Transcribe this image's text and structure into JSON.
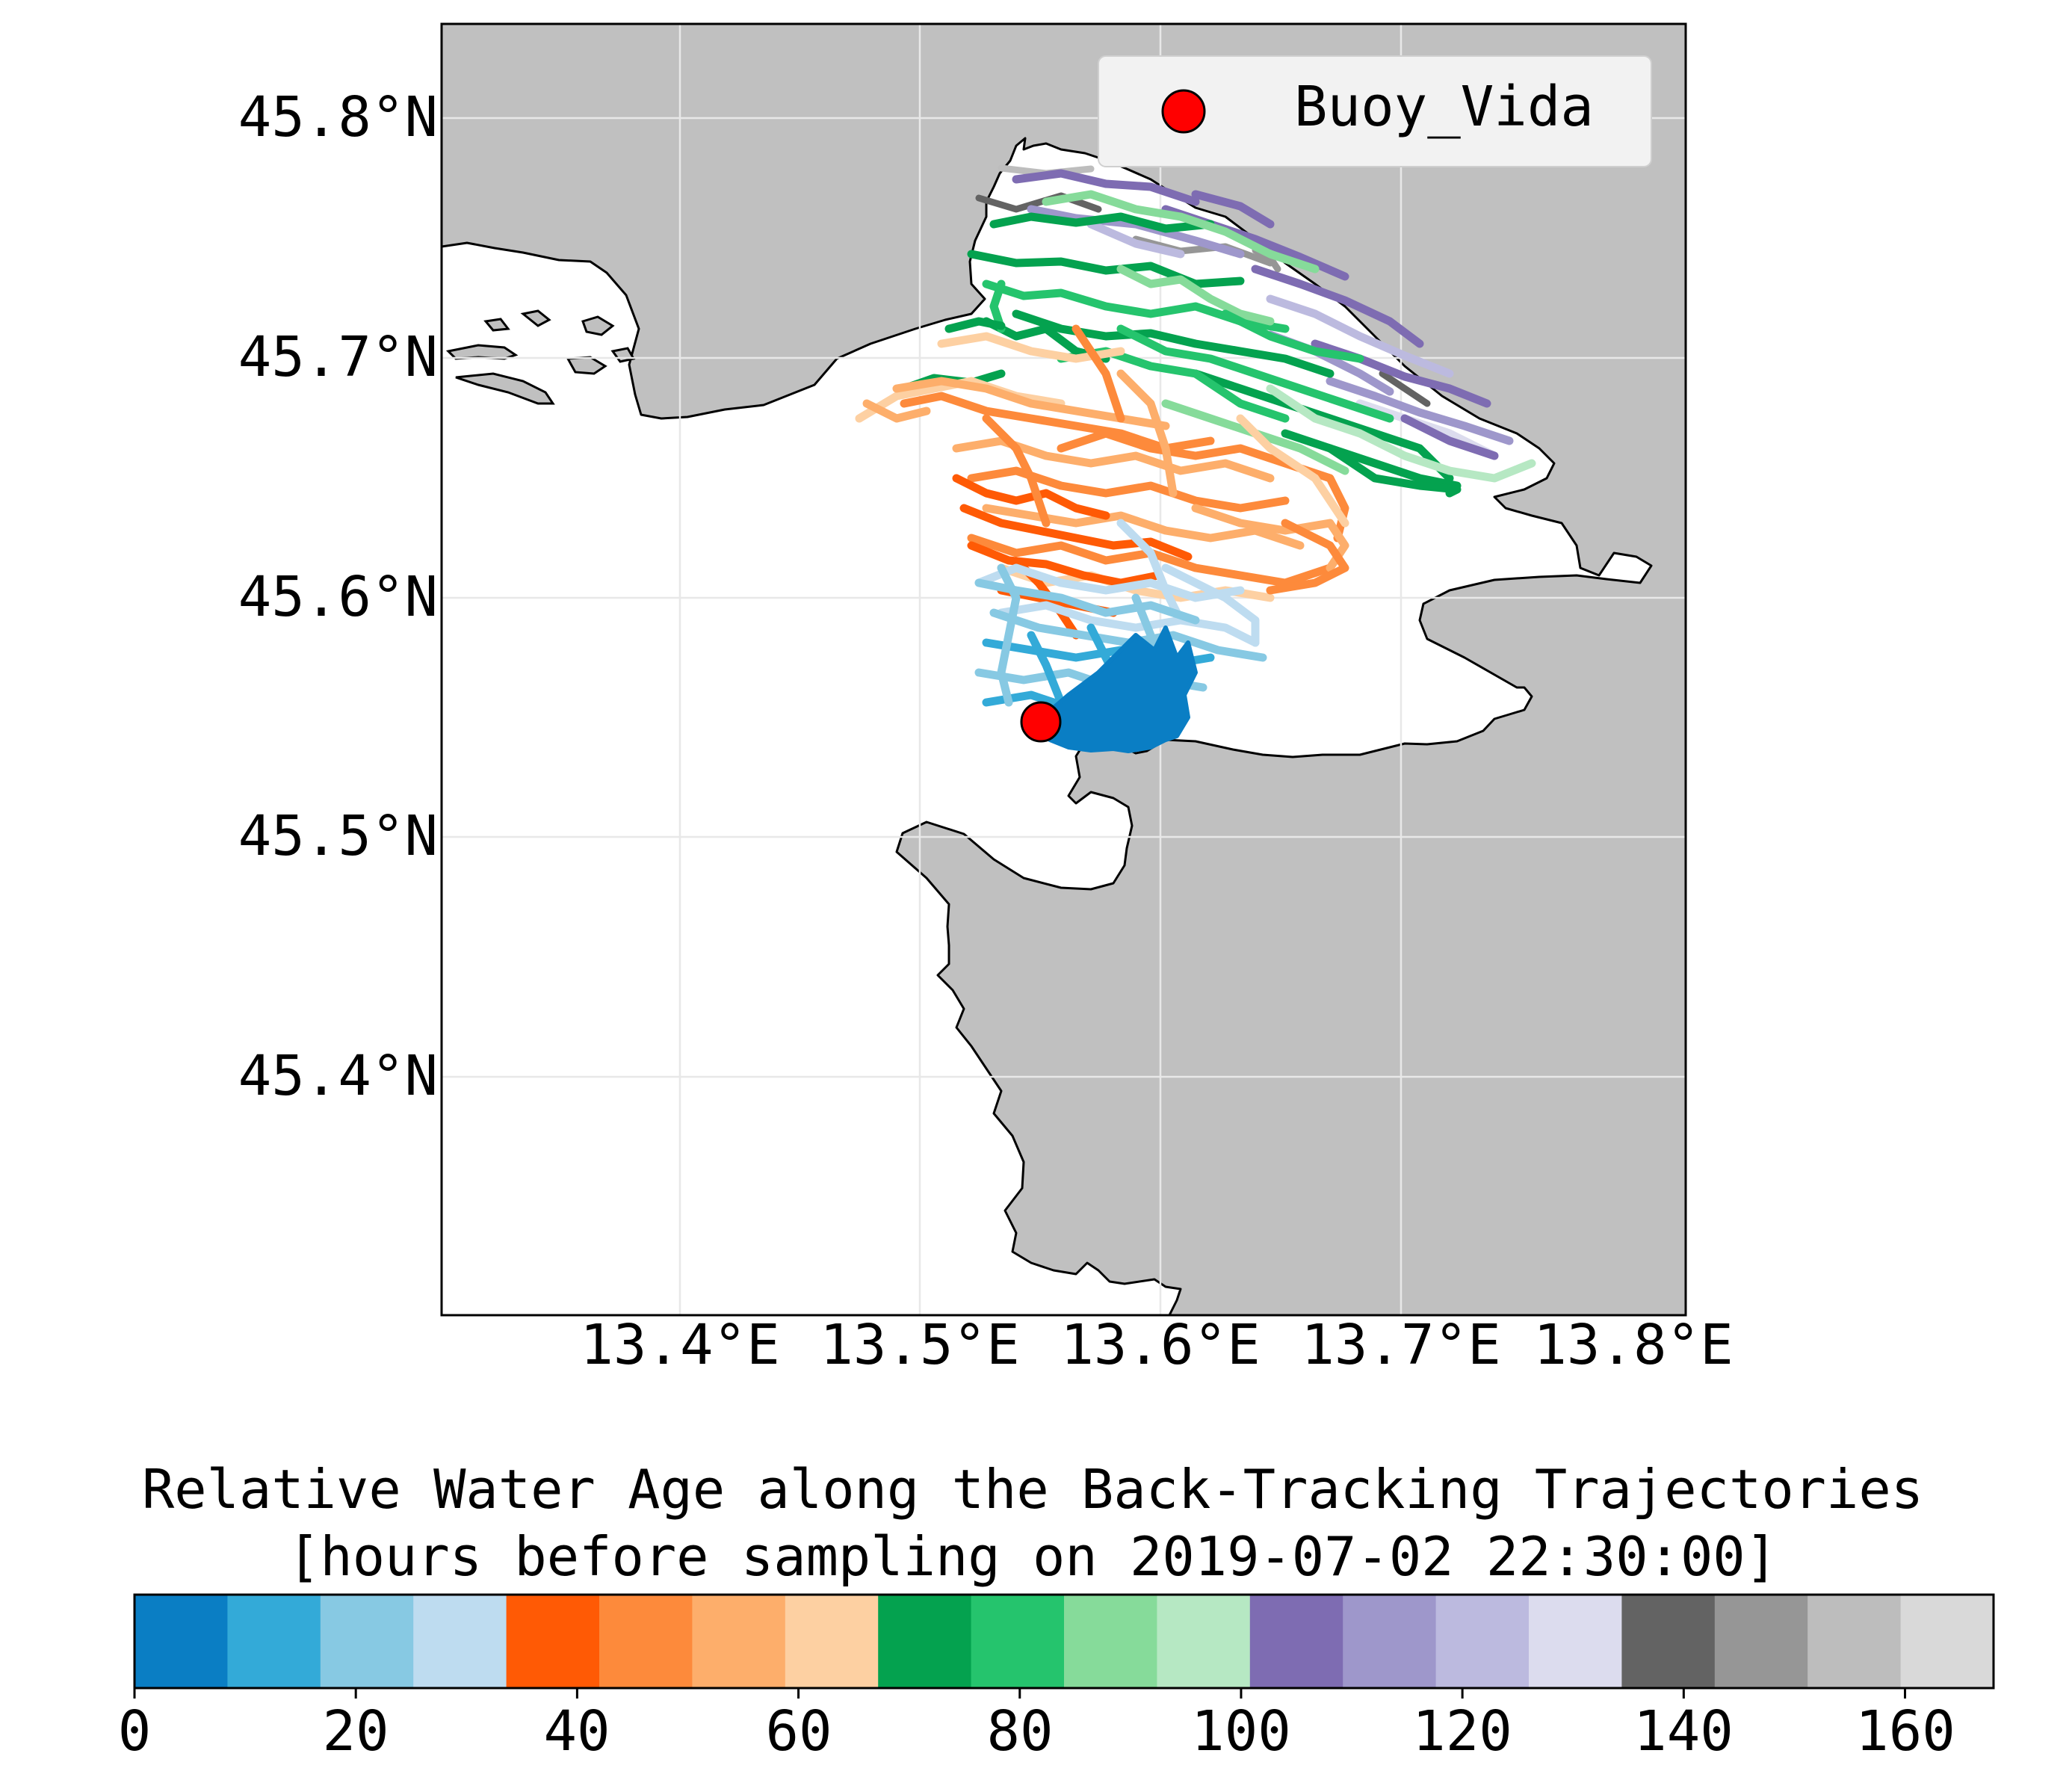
{
  "map": {
    "lat_labels": [
      "45.8°N",
      "45.7°N",
      "45.6°N",
      "45.5°N",
      "45.4°N"
    ],
    "lon_labels": [
      "13.4°E",
      "13.5°E",
      "13.6°E",
      "13.7°E",
      "13.8°E"
    ],
    "land_color": "#c0c0c0",
    "sea_color": "#ffffff",
    "grid": true
  },
  "legend": {
    "label": "Buoy_Vida",
    "marker_color": "#ff0000",
    "position": "top-right"
  },
  "station": {
    "name": "Buoy_Vida",
    "lon": 13.55,
    "lat": 45.549
  },
  "colorbar": {
    "title_line1": "Relative Water Age along the Back-Tracking Trajectories",
    "title_line2": "[hours before sampling on 2019-07-02 22:30:00]",
    "ticks": [
      "0",
      "20",
      "40",
      "60",
      "80",
      "100",
      "120",
      "140",
      "160"
    ],
    "range": [
      0,
      168
    ],
    "bin_hours": 8.4,
    "colors": [
      "#0a7ec4",
      "#33aad8",
      "#87c9e3",
      "#bedcf0",
      "#ff5a05",
      "#fd8a3b",
      "#fdae6b",
      "#fdd0a2",
      "#04a24f",
      "#25c46d",
      "#86db9a",
      "#b6e8c3",
      "#7e6cb2",
      "#9e97cb",
      "#bcbadf",
      "#dcdcee",
      "#636363",
      "#969696",
      "#bdbdbd",
      "#d9d9d9"
    ]
  }
}
